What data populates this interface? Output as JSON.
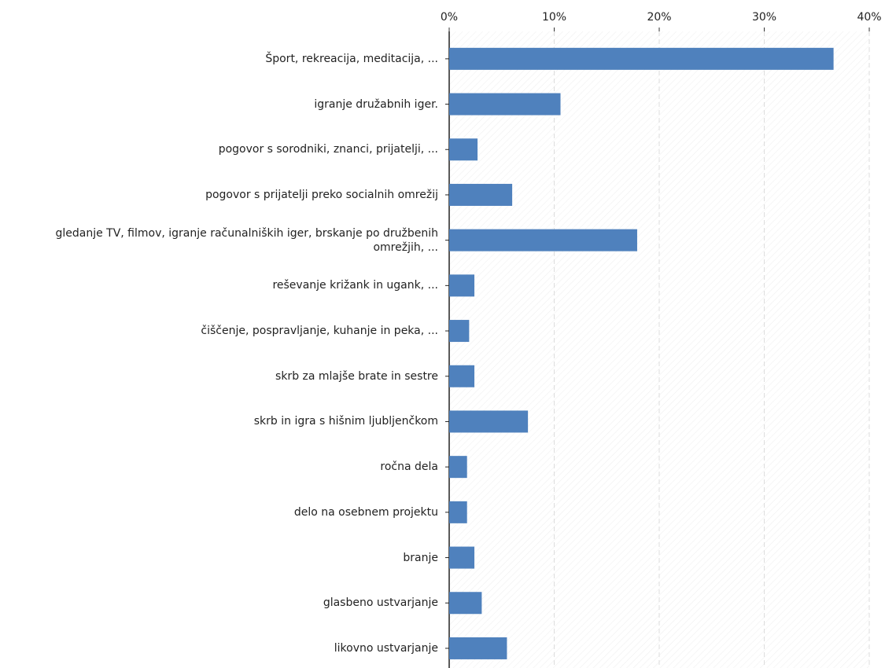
{
  "chart_data": {
    "type": "bar",
    "orientation": "horizontal",
    "categories": [
      "Šport, rekreacija, meditacija, ...",
      "igranje družabnih iger.",
      "pogovor s sorodniki, znanci, prijatelji, ...",
      "pogovor s prijatelji preko socialnih omrežij",
      "gledanje TV, filmov, igranje računalniških iger, brskanje po družbenih omrežjih, ...",
      "reševanje križank in ugank, ...",
      "čiščenje, pospravljanje, kuhanje in peka, ...",
      "skrb za mlajše brate in sestre",
      "skrb in igra s hišnim ljubljenčkom",
      "ročna dela",
      "delo na osebnem projektu",
      "branje",
      "glasbeno ustvarjanje",
      "likovno ustvarjanje"
    ],
    "values": [
      36.6,
      10.6,
      2.7,
      6.0,
      17.9,
      2.4,
      1.9,
      2.4,
      7.5,
      1.7,
      1.7,
      2.4,
      3.1,
      5.5
    ],
    "color": "#4f81bd",
    "xlim": [
      0,
      40
    ],
    "xticks": [
      {
        "value": 0,
        "label": "0%"
      },
      {
        "value": 10,
        "label": "10%"
      },
      {
        "value": 20,
        "label": "20%"
      },
      {
        "value": 30,
        "label": "30%"
      },
      {
        "value": 40,
        "label": "40%"
      }
    ],
    "grid": true
  }
}
